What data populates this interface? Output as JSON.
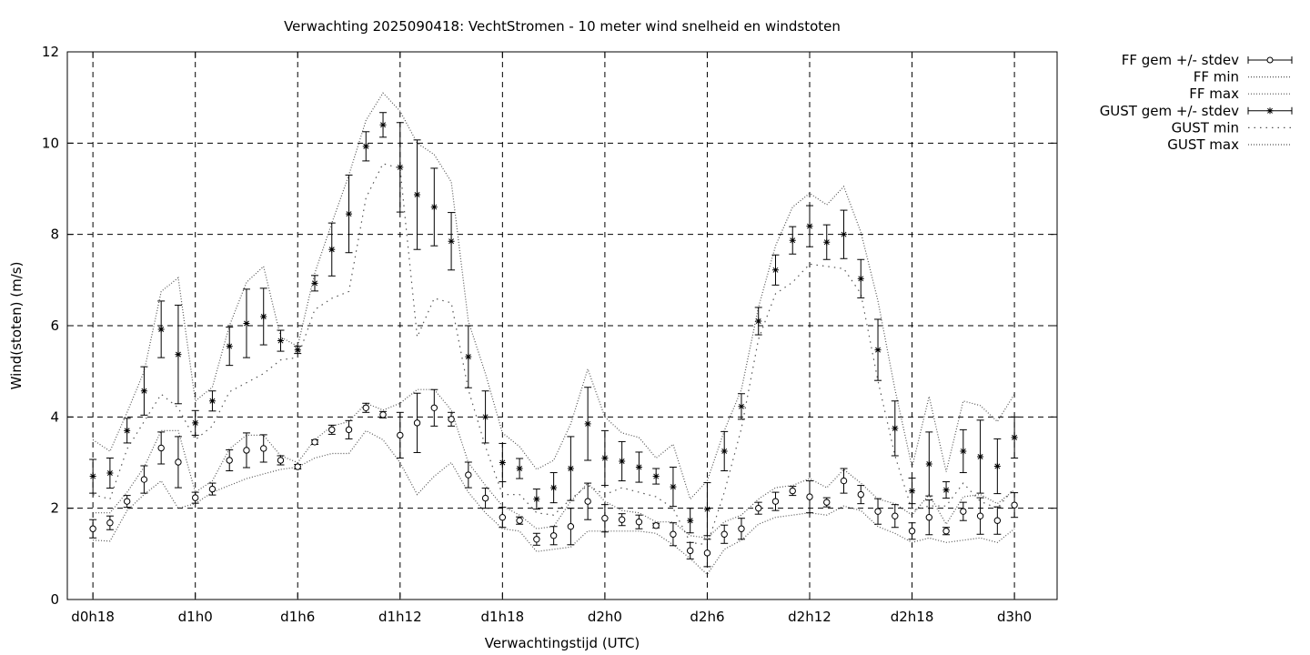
{
  "chart_data": {
    "type": "line",
    "title": "Verwachting 2025090418: VechtStromen - 10 meter wind snelheid en windstoten",
    "xlabel": "Verwachtingstijd (UTC)",
    "ylabel": "Wind(stoten) (m/s)",
    "ylim": [
      0,
      12
    ],
    "xlim": [
      16.5,
      74.5
    ],
    "yticks": [
      0,
      2,
      4,
      6,
      8,
      10,
      12
    ],
    "xticks": [
      {
        "value": 18,
        "label": "d0h18"
      },
      {
        "value": 24,
        "label": "d1h0"
      },
      {
        "value": 30,
        "label": "d1h6"
      },
      {
        "value": 36,
        "label": "d1h12"
      },
      {
        "value": 42,
        "label": "d1h18"
      },
      {
        "value": 48,
        "label": "d2h0"
      },
      {
        "value": 54,
        "label": "d2h6"
      },
      {
        "value": 60,
        "label": "d2h12"
      },
      {
        "value": 66,
        "label": "d2h18"
      },
      {
        "value": 72,
        "label": "d3h0"
      }
    ],
    "grid": true,
    "legend_position": "outside-top-right",
    "x": [
      18,
      19,
      20,
      21,
      22,
      23,
      24,
      25,
      26,
      27,
      28,
      29,
      30,
      31,
      32,
      33,
      34,
      35,
      36,
      37,
      38,
      39,
      40,
      41,
      42,
      43,
      44,
      45,
      46,
      47,
      48,
      49,
      50,
      51,
      52,
      53,
      54,
      55,
      56,
      57,
      58,
      59,
      60,
      61,
      62,
      63,
      64,
      65,
      66,
      67,
      68,
      69,
      70,
      71,
      72
    ],
    "series": [
      {
        "name": "FF gem +/- stdev",
        "style": "errorbar-circle",
        "values": [
          1.55,
          1.68,
          2.15,
          2.63,
          3.32,
          3.01,
          2.23,
          2.42,
          3.05,
          3.27,
          3.31,
          3.05,
          2.91,
          3.45,
          3.72,
          3.72,
          4.2,
          4.05,
          3.6,
          3.87,
          4.2,
          3.95,
          2.73,
          2.22,
          1.8,
          1.73,
          1.32,
          1.4,
          1.6,
          2.15,
          1.78,
          1.75,
          1.7,
          1.62,
          1.43,
          1.07,
          1.02,
          1.43,
          1.55,
          2.0,
          2.15,
          2.38,
          2.25,
          2.13,
          2.6,
          2.3,
          1.93,
          1.83,
          1.5,
          1.8,
          1.5,
          1.93,
          1.83,
          1.73,
          2.07
        ],
        "stdev": [
          0.2,
          0.15,
          0.13,
          0.3,
          0.35,
          0.56,
          0.12,
          0.13,
          0.23,
          0.38,
          0.3,
          0.1,
          0.05,
          0.05,
          0.1,
          0.2,
          0.1,
          0.07,
          0.5,
          0.65,
          0.4,
          0.15,
          0.28,
          0.22,
          0.22,
          0.08,
          0.13,
          0.2,
          0.4,
          0.4,
          0.3,
          0.13,
          0.15,
          0.05,
          0.25,
          0.18,
          0.3,
          0.2,
          0.23,
          0.13,
          0.2,
          0.1,
          0.35,
          0.1,
          0.27,
          0.2,
          0.28,
          0.25,
          0.18,
          0.38,
          0.08,
          0.2,
          0.4,
          0.3,
          0.27
        ]
      },
      {
        "name": "FF min",
        "style": "dotted",
        "values": [
          1.3,
          1.28,
          1.95,
          2.3,
          2.6,
          2.0,
          2.1,
          2.35,
          2.5,
          2.65,
          2.75,
          2.85,
          2.9,
          3.1,
          3.2,
          3.2,
          3.7,
          3.5,
          3.0,
          2.3,
          2.7,
          3.0,
          2.35,
          1.9,
          1.55,
          1.5,
          1.05,
          1.1,
          1.15,
          1.5,
          1.5,
          1.5,
          1.5,
          1.45,
          1.2,
          0.9,
          0.55,
          1.1,
          1.3,
          1.65,
          1.8,
          1.85,
          1.9,
          1.85,
          2.05,
          1.95,
          1.6,
          1.45,
          1.25,
          1.35,
          1.25,
          1.3,
          1.35,
          1.25,
          1.55
        ]
      },
      {
        "name": "FF max",
        "style": "dotted",
        "values": [
          1.9,
          1.9,
          2.35,
          2.9,
          3.7,
          3.7,
          2.35,
          2.6,
          3.3,
          3.6,
          3.6,
          3.15,
          3.0,
          3.5,
          3.8,
          3.9,
          4.3,
          4.15,
          4.3,
          4.6,
          4.6,
          4.15,
          3.0,
          2.5,
          2.05,
          1.85,
          1.55,
          1.6,
          2.15,
          2.55,
          2.15,
          1.95,
          1.9,
          1.7,
          1.7,
          1.4,
          1.35,
          1.7,
          1.85,
          2.2,
          2.45,
          2.5,
          2.65,
          2.45,
          2.85,
          2.55,
          2.2,
          2.1,
          1.85,
          2.3,
          1.65,
          2.25,
          2.3,
          2.1,
          2.4
        ]
      },
      {
        "name": "GUST gem +/- stdev",
        "style": "errorbar-star",
        "values": [
          2.7,
          2.77,
          3.7,
          4.57,
          5.92,
          5.37,
          3.87,
          4.35,
          5.55,
          6.05,
          6.2,
          5.67,
          5.47,
          6.93,
          7.67,
          8.45,
          9.93,
          10.4,
          9.47,
          8.87,
          8.6,
          7.85,
          5.32,
          4.0,
          3.0,
          2.87,
          2.2,
          2.45,
          2.87,
          3.85,
          3.1,
          3.03,
          2.9,
          2.7,
          2.47,
          1.73,
          1.98,
          3.25,
          4.23,
          6.1,
          7.22,
          7.87,
          8.18,
          7.83,
          8.0,
          7.03,
          5.47,
          3.75,
          2.38,
          2.97,
          2.4,
          3.25,
          3.13,
          2.92,
          3.55
        ],
        "stdev": [
          0.37,
          0.33,
          0.27,
          0.53,
          0.62,
          1.08,
          0.27,
          0.22,
          0.42,
          0.75,
          0.62,
          0.23,
          0.08,
          0.17,
          0.58,
          0.85,
          0.32,
          0.27,
          0.98,
          1.2,
          0.85,
          0.63,
          0.68,
          0.57,
          0.42,
          0.22,
          0.22,
          0.33,
          0.7,
          0.8,
          0.6,
          0.43,
          0.33,
          0.17,
          0.43,
          0.27,
          0.58,
          0.43,
          0.28,
          0.3,
          0.33,
          0.3,
          0.45,
          0.38,
          0.53,
          0.42,
          0.67,
          0.6,
          0.28,
          0.7,
          0.18,
          0.47,
          0.8,
          0.6,
          0.45
        ]
      },
      {
        "name": "GUST min",
        "style": "dotted-sparse",
        "values": [
          2.3,
          2.2,
          3.3,
          3.9,
          4.5,
          4.2,
          3.5,
          3.8,
          4.55,
          4.75,
          4.95,
          5.25,
          5.3,
          6.35,
          6.6,
          6.75,
          8.8,
          9.55,
          9.45,
          5.75,
          6.6,
          6.5,
          4.6,
          3.35,
          2.3,
          2.3,
          1.9,
          1.85,
          2.2,
          2.5,
          2.3,
          2.45,
          2.35,
          2.25,
          2.0,
          1.25,
          1.2,
          2.35,
          3.75,
          5.7,
          6.7,
          6.95,
          7.35,
          7.3,
          7.25,
          6.7,
          4.8,
          3.15,
          1.95,
          2.05,
          2.05,
          2.55,
          2.15,
          2.0,
          2.45
        ]
      },
      {
        "name": "GUST max",
        "style": "dotted",
        "values": [
          3.5,
          3.25,
          4.1,
          5.0,
          6.75,
          7.05,
          4.35,
          4.65,
          6.0,
          6.95,
          7.3,
          5.75,
          5.55,
          7.15,
          8.25,
          9.3,
          10.5,
          11.1,
          10.7,
          10.0,
          9.75,
          9.15,
          6.1,
          4.95,
          3.65,
          3.35,
          2.85,
          3.05,
          3.85,
          5.05,
          4.0,
          3.65,
          3.55,
          3.1,
          3.4,
          2.2,
          2.6,
          3.7,
          4.6,
          6.4,
          7.75,
          8.6,
          8.9,
          8.65,
          9.05,
          8.05,
          6.55,
          4.6,
          2.9,
          4.45,
          2.8,
          4.35,
          4.25,
          3.9,
          4.5
        ]
      }
    ]
  }
}
